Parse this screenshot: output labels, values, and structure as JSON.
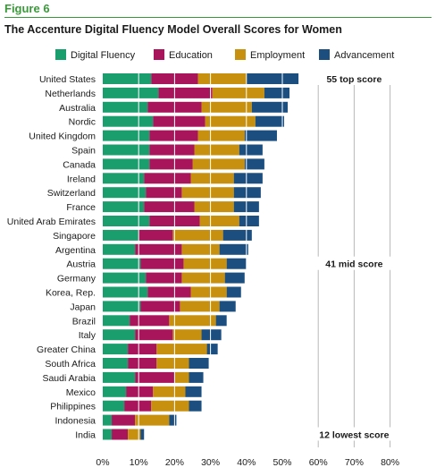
{
  "figure_label": "Figure 6",
  "chart_data": {
    "type": "bar",
    "orientation": "horizontal",
    "stacked": true,
    "title": "The Accenture Digital Fluency Model Overall Scores for Women",
    "xlim": [
      0,
      80
    ],
    "x_ticks": [
      "0%",
      "10%",
      "20%",
      "30%",
      "40%",
      "50%",
      "60%",
      "70%",
      "80%"
    ],
    "legend_position": "top",
    "categories": [
      "United States",
      "Netherlands",
      "Australia",
      "Nordic",
      "United Kingdom",
      "Spain",
      "Canada",
      "Ireland",
      "Switzerland",
      "France",
      "United Arab Emirates",
      "Singapore",
      "Argentina",
      "Austria",
      "Germany",
      "Korea, Rep.",
      "Japan",
      "Brazil",
      "Italy",
      "Greater China",
      "South Africa",
      "Saudi Arabia",
      "Mexico",
      "Philippines",
      "Indonesia",
      "India"
    ],
    "series": [
      {
        "name": "Digital Fluency",
        "color": "#1a9e6e",
        "values": [
          13.5,
          15.5,
          12.5,
          14.0,
          13.0,
          13.0,
          13.0,
          11.5,
          12.0,
          11.5,
          13.0,
          10.0,
          9.0,
          10.5,
          12.0,
          12.5,
          10.5,
          7.5,
          9.0,
          7.0,
          7.0,
          9.0,
          6.5,
          6.0,
          2.5,
          2.5
        ]
      },
      {
        "name": "Education",
        "color": "#a8155a",
        "values": [
          13.0,
          15.0,
          15.0,
          14.5,
          13.5,
          12.5,
          12.0,
          13.0,
          10.0,
          14.0,
          14.0,
          9.5,
          13.0,
          12.0,
          10.0,
          12.0,
          11.0,
          11.0,
          10.5,
          8.0,
          8.0,
          11.0,
          7.5,
          7.5,
          6.5,
          4.5
        ]
      },
      {
        "name": "Employment",
        "color": "#c8900f",
        "values": [
          13.5,
          14.5,
          14.0,
          14.0,
          13.0,
          12.5,
          14.5,
          12.0,
          14.5,
          11.0,
          11.0,
          14.0,
          10.5,
          12.0,
          12.0,
          10.0,
          11.0,
          13.0,
          8.0,
          14.0,
          9.0,
          4.0,
          9.0,
          10.5,
          9.5,
          3.5
        ]
      },
      {
        "name": "Advancement",
        "color": "#1c4f80",
        "values": [
          14.5,
          7.0,
          10.0,
          8.0,
          9.0,
          6.5,
          5.5,
          8.0,
          7.5,
          7.0,
          5.5,
          8.0,
          8.0,
          5.5,
          5.5,
          4.0,
          4.5,
          3.0,
          5.5,
          3.0,
          5.5,
          4.0,
          4.5,
          3.5,
          2.0,
          1.0
        ]
      }
    ],
    "annotations": [
      {
        "text": "55 top score",
        "category": "United States"
      },
      {
        "text": "41 mid score",
        "category": "Austria"
      },
      {
        "text": "12 lowest score",
        "category": "India"
      }
    ]
  }
}
